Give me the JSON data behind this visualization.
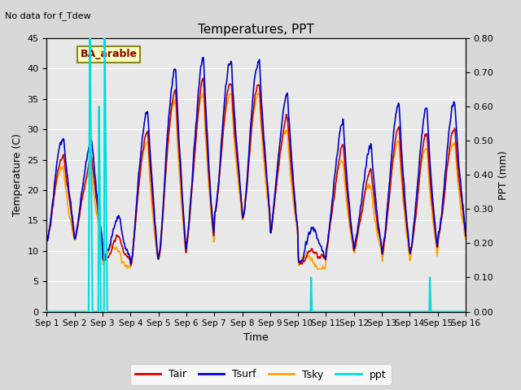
{
  "title": "Temperatures, PPT",
  "subtitle": "No data for f_Tdew",
  "legend_label": "BA_arable",
  "xlabel": "Time",
  "ylabel_left": "Temperature (C)",
  "ylabel_right": "PPT (mm)",
  "ylim_left": [
    0,
    45
  ],
  "ylim_right": [
    0.0,
    0.8
  ],
  "xlim": [
    0,
    15
  ],
  "xtick_labels": [
    "Sep 1",
    "Sep 2",
    "Sep 3",
    "Sep 4",
    "Sep 5",
    "Sep 6",
    "Sep 7",
    "Sep 8",
    "Sep 9",
    "Sep 10",
    "Sep 11",
    "Sep 12",
    "Sep 13",
    "Sep 14",
    "Sep 15",
    "Sep 16"
  ],
  "yticks_left": [
    0,
    5,
    10,
    15,
    20,
    25,
    30,
    35,
    40,
    45
  ],
  "yticks_right": [
    0.0,
    0.1,
    0.2,
    0.3,
    0.4,
    0.5,
    0.6,
    0.7,
    0.8
  ],
  "colors": {
    "Tair": "#cc0000",
    "Tsurf": "#0000cc",
    "Tsky": "#ffa500",
    "ppt": "#00dddd",
    "background": "#e8e8e8",
    "grid": "#ffffff"
  },
  "figsize": [
    6.4,
    4.8
  ],
  "dpi": 100
}
